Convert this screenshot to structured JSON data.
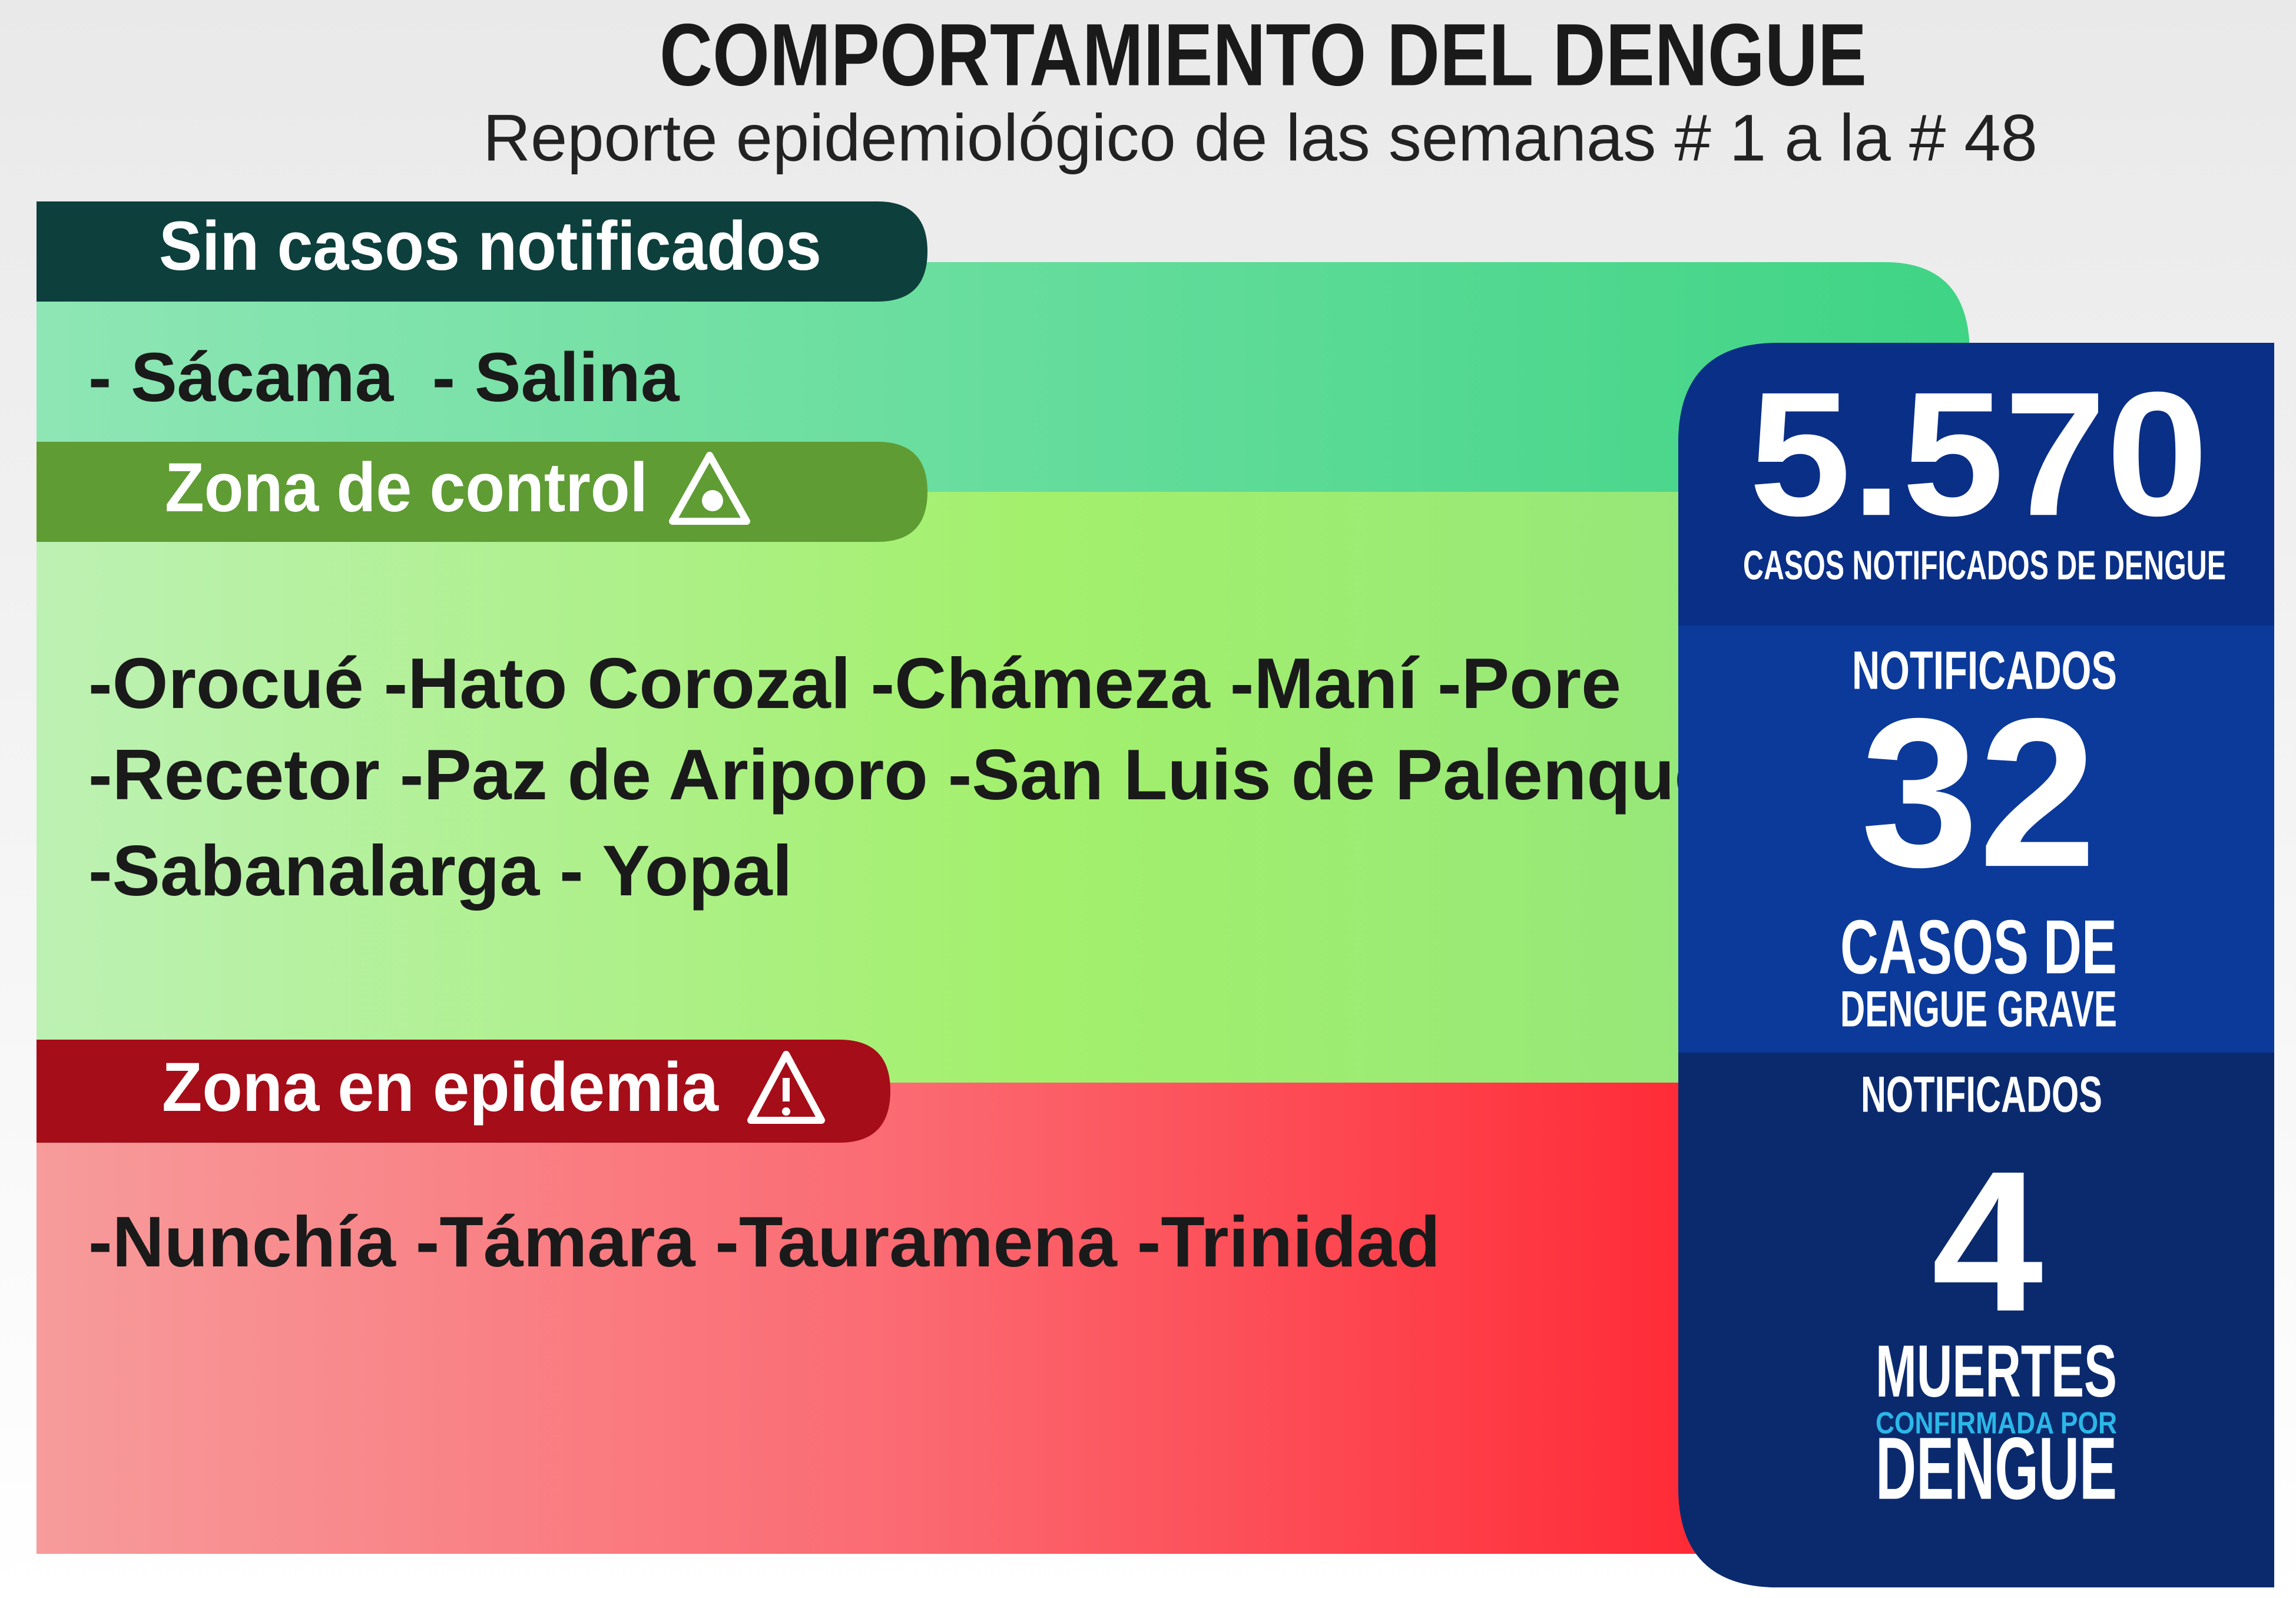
{
  "header": {
    "title": "COMPORTAMIENTO DEL DENGUE",
    "subtitle": "Reporte epidemiológico de las semanas # 1 a la  # 48"
  },
  "sections": [
    {
      "label": "Sin casos notificados",
      "lines": [
        "- Sácama  - Salina"
      ]
    },
    {
      "label": "Zona de control",
      "lines": [
        "-Orocué -Hato Corozal -Chámeza -Maní -Pore",
        "-Recetor -Paz de Ariporo -San Luis de Palenque",
        "-Sabanalarga - Yopal"
      ]
    },
    {
      "label": "Zona en epidemia",
      "lines": [
        "-Nunchía -Támara -Tauramena -Trinidad"
      ]
    }
  ],
  "stats": [
    {
      "value": "5.570",
      "label": "CASOS NOTIFICADOS DE DENGUE"
    },
    {
      "prefix": "NOTIFICADOS",
      "value": "32",
      "label": "CASOS DE",
      "sublabel": "DENGUE GRAVE"
    },
    {
      "prefix": "NOTIFICADOS",
      "value": "4",
      "label": "MUERTES",
      "sublabel": "CONFIRMADA POR",
      "suffix": "DENGUE"
    }
  ]
}
